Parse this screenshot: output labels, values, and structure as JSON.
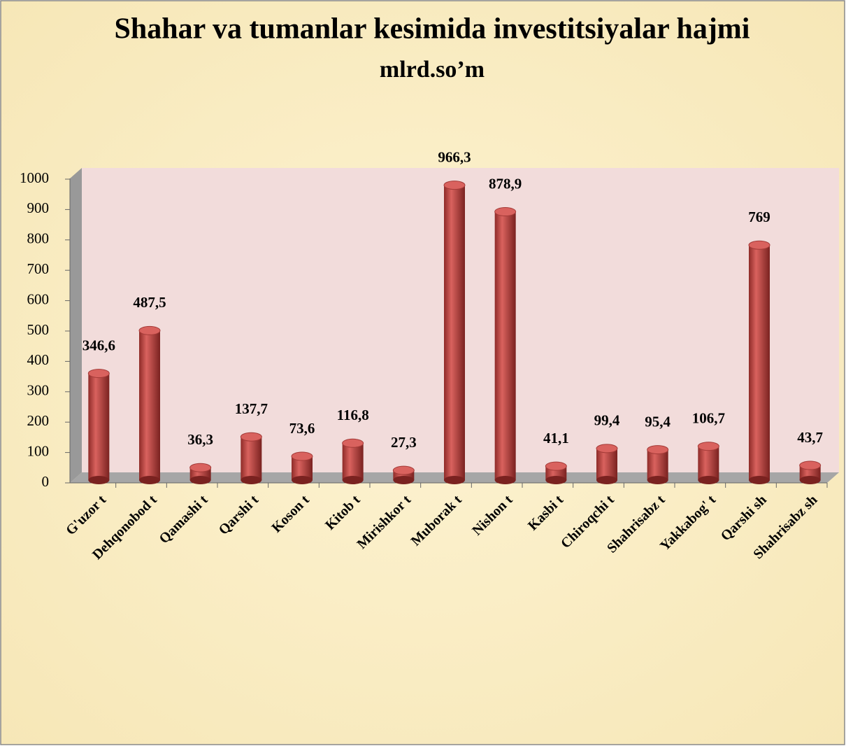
{
  "chart_data": {
    "type": "bar3d",
    "title": "Shahar va tumanlar kesimida investitsiyalar hajmi",
    "subtitle": "mlrd.so’m",
    "categories": [
      "G'uzor t",
      "Dehqonobod t",
      "Qamashi t",
      "Qarshi t",
      "Koson t",
      "Kitob t",
      "Mirishkor t",
      "Muborak t",
      "Nishon t",
      "Kasbi t",
      "Chiroqchi t",
      "Shahrisabz t",
      "Yakkabog' t",
      "Qarshi sh",
      "Shahrisabz sh"
    ],
    "values": [
      346.6,
      487.5,
      36.3,
      137.7,
      73.6,
      116.8,
      27.3,
      966.3,
      878.9,
      41.1,
      99.4,
      95.4,
      106.7,
      769,
      43.7
    ],
    "value_labels": [
      "346,6",
      "487,5",
      "36,3",
      "137,7",
      "73,6",
      "116,8",
      "27,3",
      "966,3",
      "878,9",
      "41,1",
      "99,4",
      "95,4",
      "106,7",
      "769",
      "43,7"
    ],
    "color": "#c0504d",
    "ylim": [
      0,
      1000
    ],
    "yticks": [
      0,
      100,
      200,
      300,
      400,
      500,
      600,
      700,
      800,
      900,
      1000
    ]
  }
}
